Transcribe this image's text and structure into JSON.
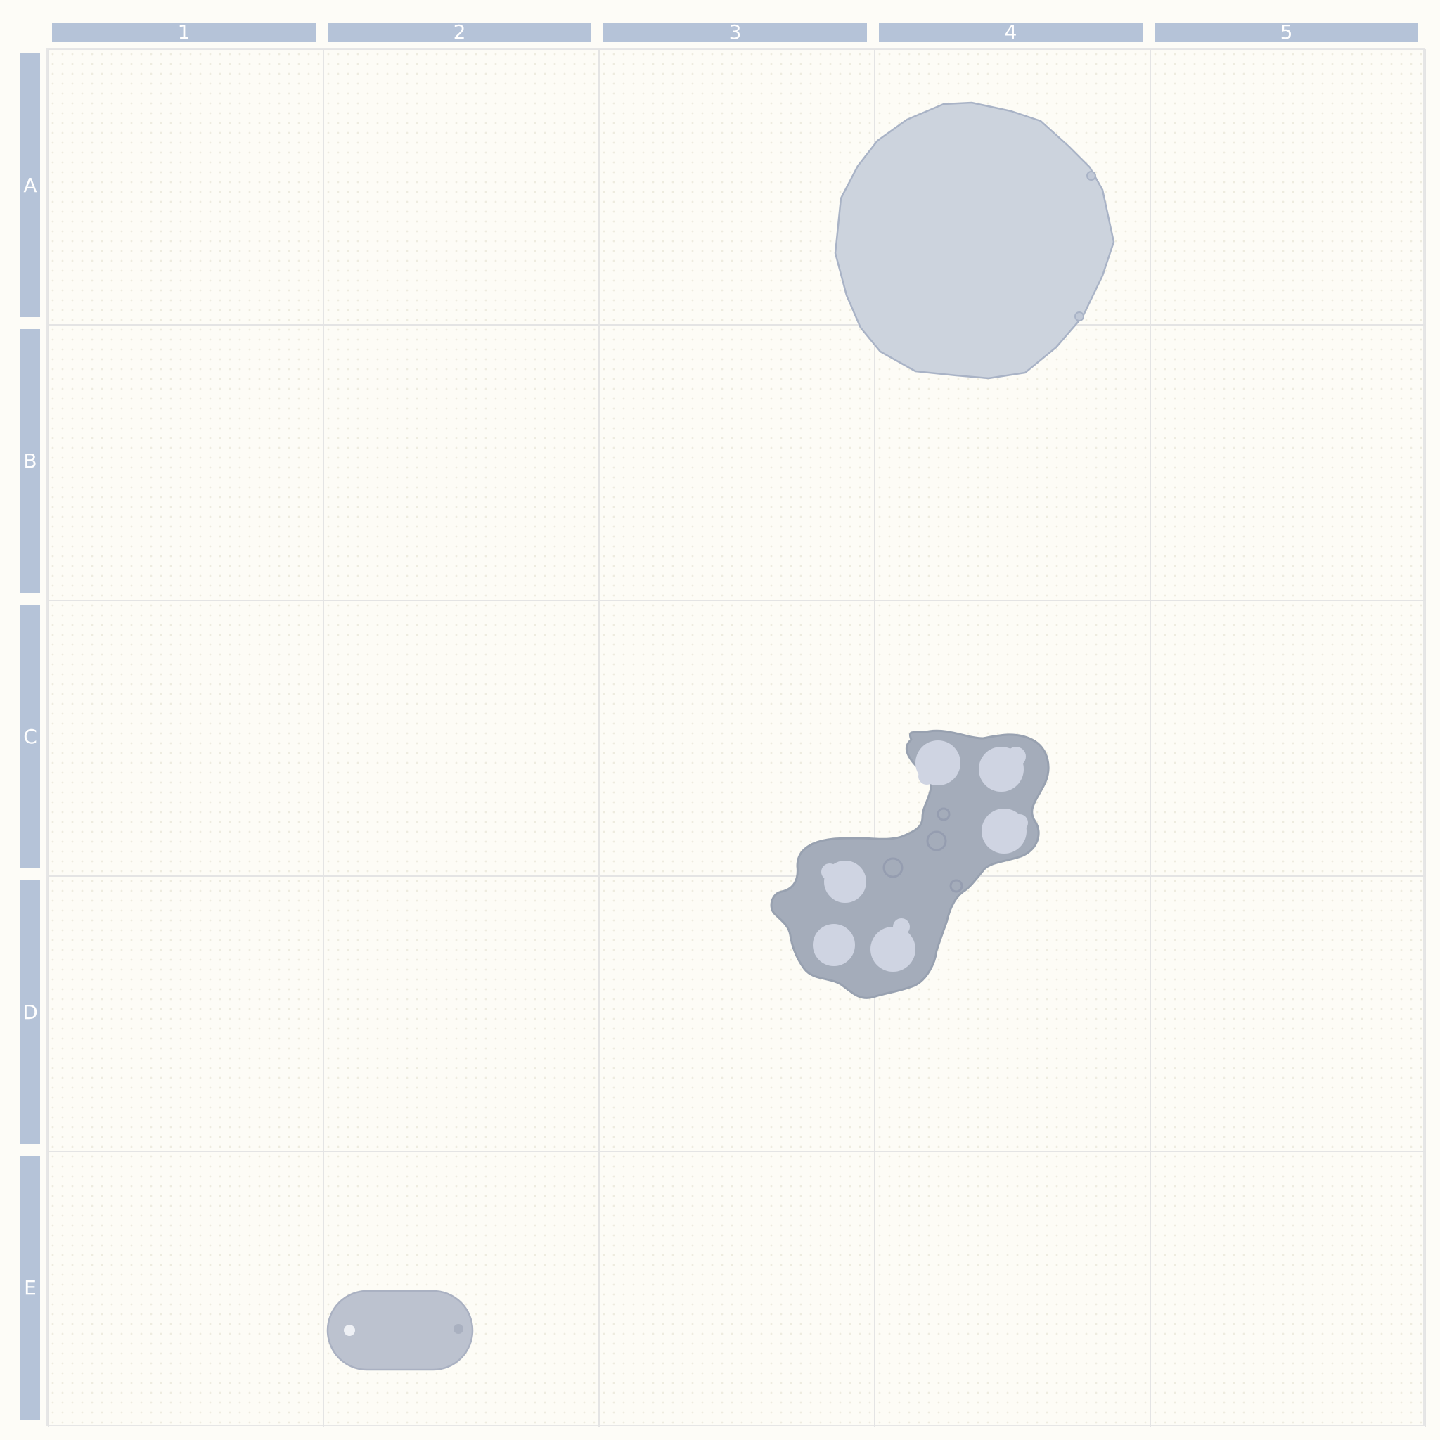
{
  "board": {
    "columns": [
      "1",
      "2",
      "3",
      "4",
      "5"
    ],
    "rows": [
      "A",
      "B",
      "C",
      "D",
      "E"
    ]
  },
  "pieces": [
    {
      "name": "large-gray-polygon",
      "cell": "A4"
    },
    {
      "name": "dark-gray-blob",
      "cell": "C4"
    },
    {
      "name": "small-gray-capsule",
      "cell": "E2"
    }
  ],
  "colors": {
    "header": "#b5c3d8",
    "board_background": "#fdfcf6",
    "grid_line": "#e4e4e4",
    "polygon_fill": "#ccd3dd",
    "polygon_stroke": "#a9b3c6",
    "blob_fill": "#a4acba",
    "blob_spot": "#cfd4e2",
    "capsule_fill": "#bcc2cf"
  }
}
